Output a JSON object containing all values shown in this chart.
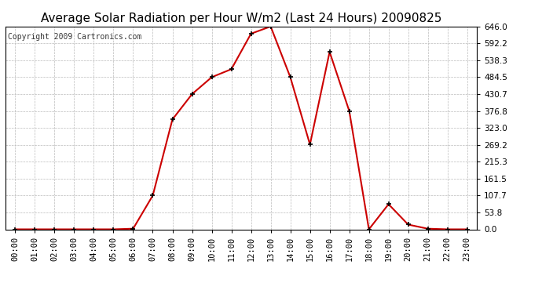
{
  "title": "Average Solar Radiation per Hour W/m2 (Last 24 Hours) 20090825",
  "copyright": "Copyright 2009 Cartronics.com",
  "hours": [
    "00:00",
    "01:00",
    "02:00",
    "03:00",
    "04:00",
    "05:00",
    "06:00",
    "07:00",
    "08:00",
    "09:00",
    "10:00",
    "11:00",
    "12:00",
    "13:00",
    "14:00",
    "15:00",
    "16:00",
    "17:00",
    "18:00",
    "19:00",
    "20:00",
    "21:00",
    "22:00",
    "23:00"
  ],
  "values": [
    0,
    0,
    0,
    0,
    0,
    0,
    2,
    107.7,
    350.0,
    430.7,
    484.5,
    510.0,
    623.0,
    646.0,
    484.5,
    270.0,
    565.0,
    376.8,
    0,
    80.0,
    15.0,
    2.0,
    0,
    0
  ],
  "line_color": "#CC0000",
  "marker": "+",
  "marker_size": 5,
  "marker_color": "#000000",
  "ylim": [
    0,
    646.0
  ],
  "yticks": [
    0.0,
    53.8,
    107.7,
    161.5,
    215.3,
    269.2,
    323.0,
    376.8,
    430.7,
    484.5,
    538.3,
    592.2,
    646.0
  ],
  "bg_color": "#ffffff",
  "grid_color": "#bbbbbb",
  "title_fontsize": 11,
  "copyright_fontsize": 7,
  "tick_fontsize": 7.5
}
